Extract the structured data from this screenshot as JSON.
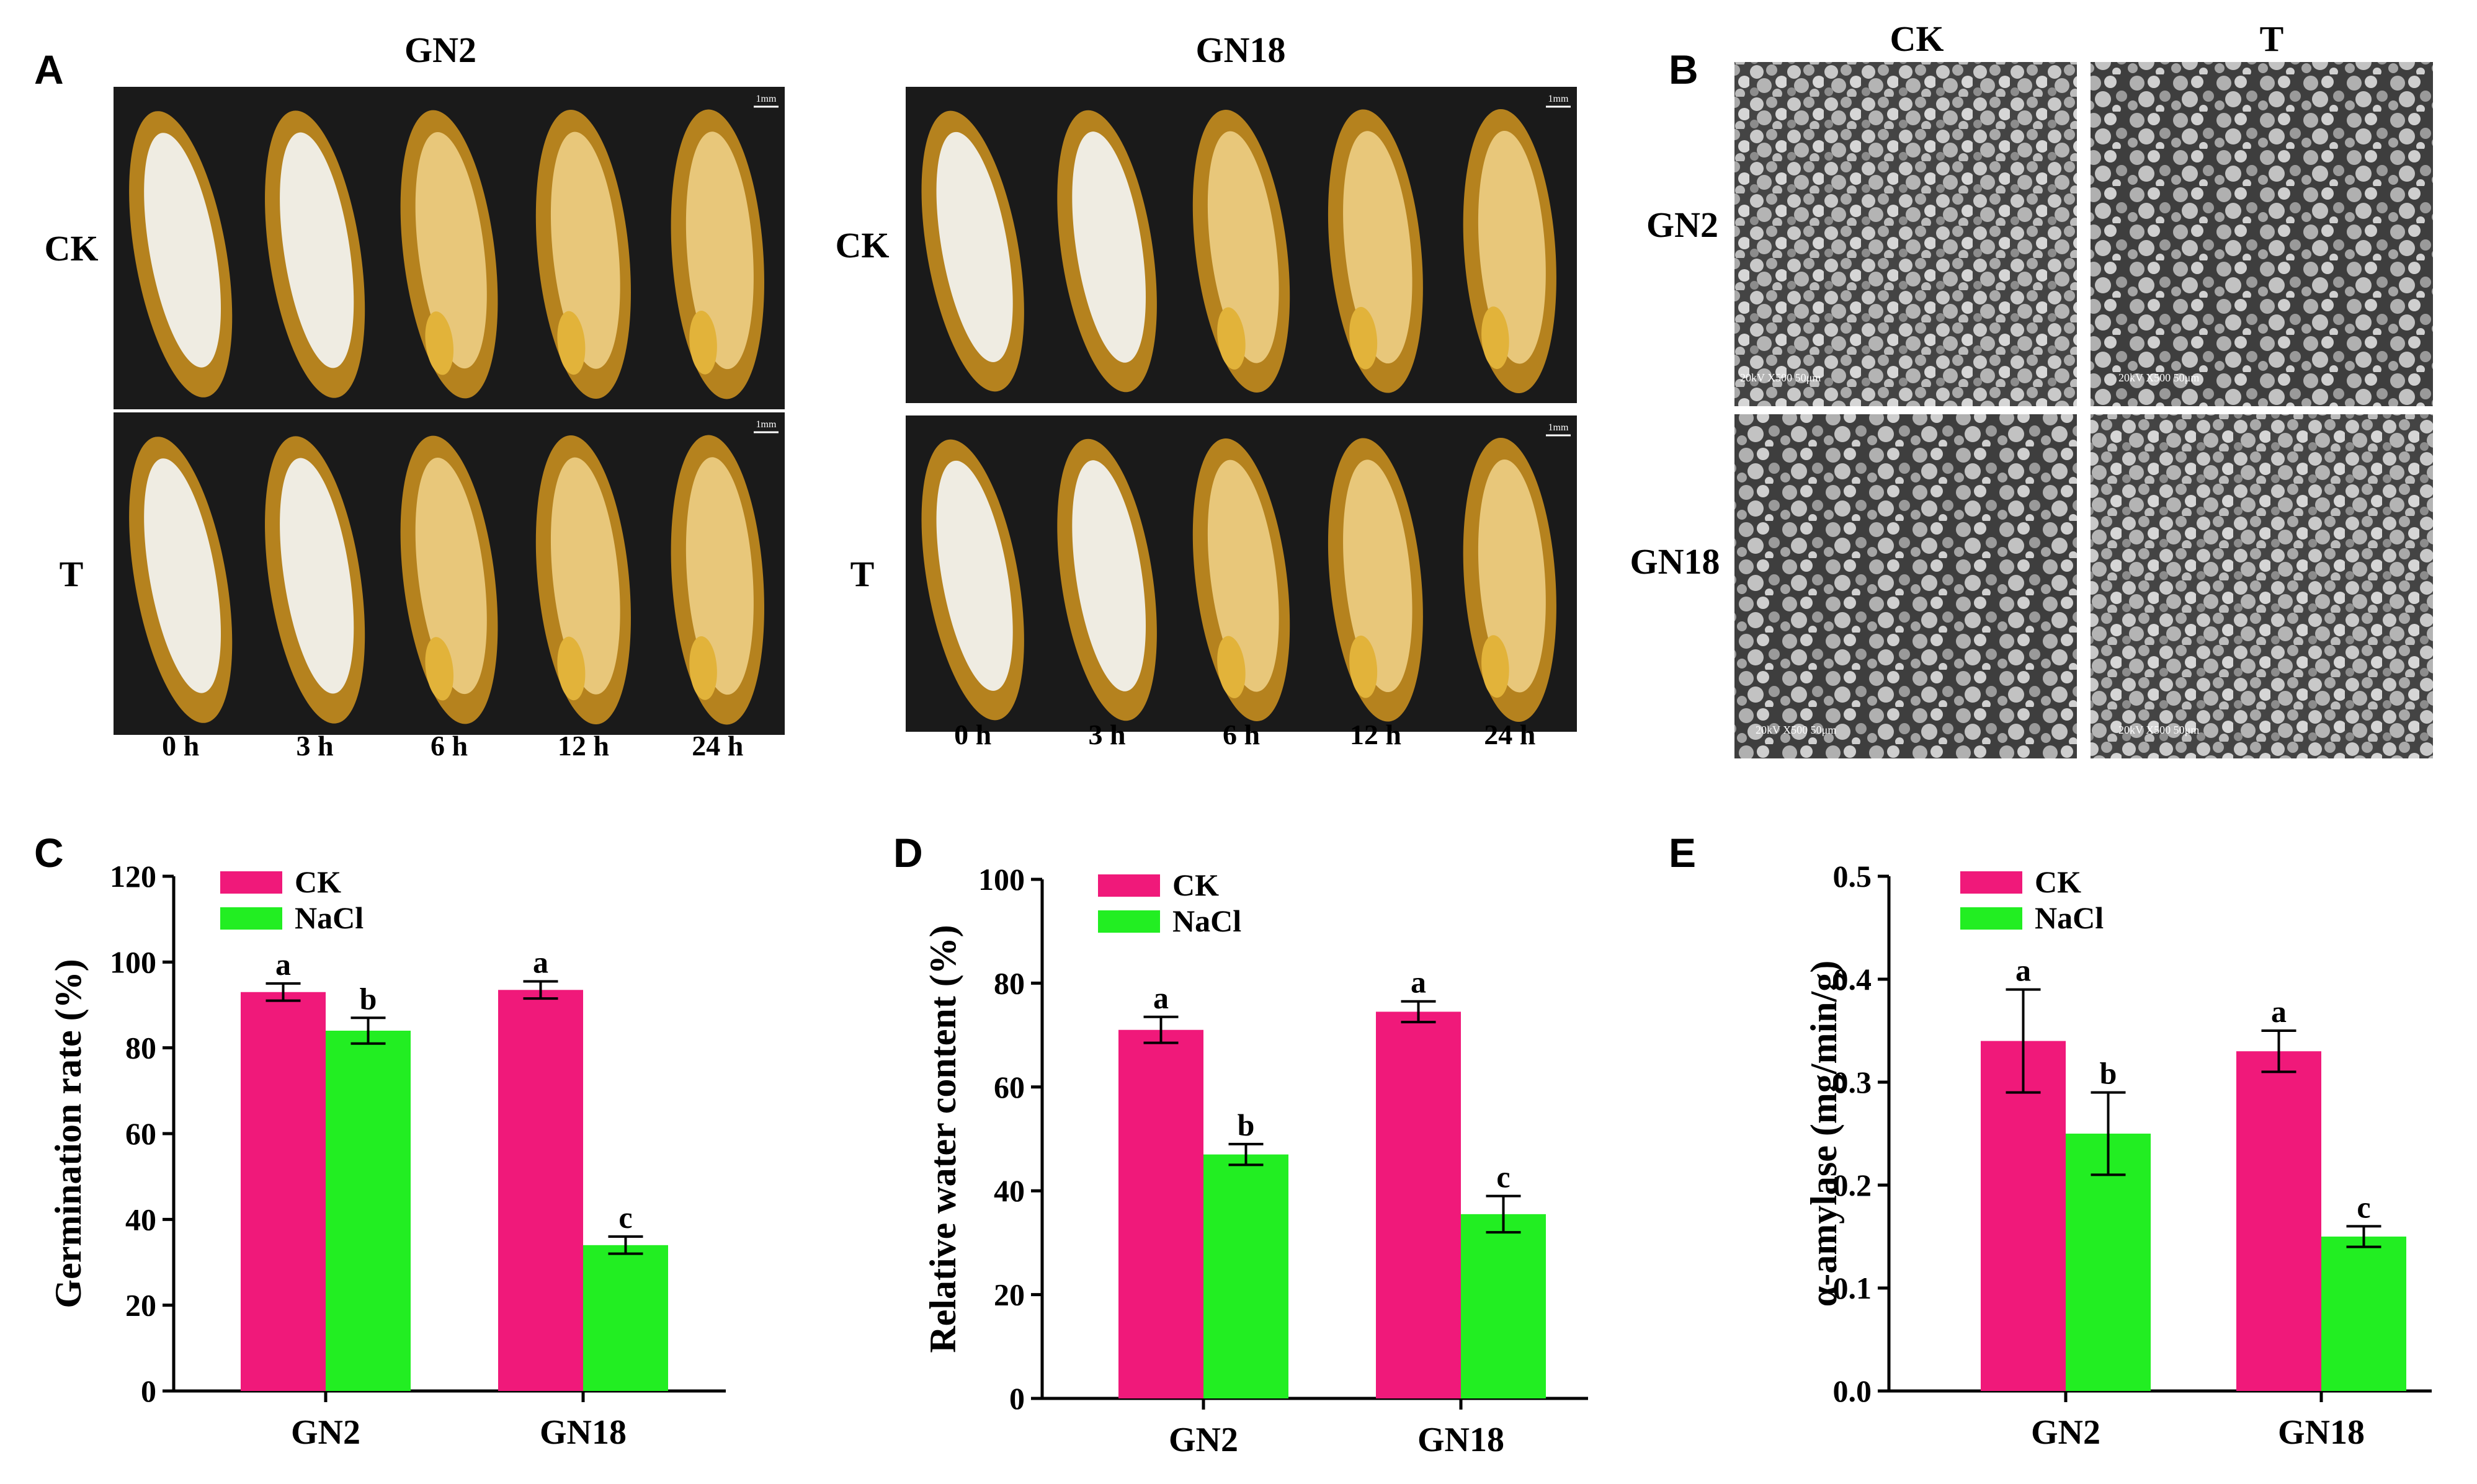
{
  "panels": {
    "A": {
      "letter": "A",
      "groups": [
        {
          "title": "GN2",
          "rows": [
            "CK",
            "T"
          ],
          "times": [
            "0 h",
            "3 h",
            "6 h",
            "12 h",
            "24 h"
          ],
          "scalebar": "1mm"
        },
        {
          "title": "GN18",
          "rows": [
            "CK",
            "T"
          ],
          "times": [
            "0 h",
            "3 h",
            "6 h",
            "12 h",
            "24 h"
          ],
          "scalebar": "1mm"
        }
      ]
    },
    "B": {
      "letter": "B",
      "columns": [
        "CK",
        "T"
      ],
      "rows": [
        "GN2",
        "GN18"
      ],
      "sem_label": "20kV   X500   50μm"
    },
    "C": {
      "letter": "C"
    },
    "D": {
      "letter": "D"
    },
    "E": {
      "letter": "E"
    }
  },
  "colors": {
    "CK": "#f0197a",
    "NaCl": "#22ee22",
    "seed_bg": "#1a1a1a",
    "husk": "#b5821e",
    "endosperm_white": "#efece2",
    "endosperm_yellow": "#e8c77a",
    "sem_bg": "#4a4a4a"
  },
  "chart_data": [
    {
      "id": "C",
      "type": "bar",
      "categories": [
        "GN2",
        "GN18"
      ],
      "series": [
        {
          "name": "CK",
          "values": [
            93,
            93.5
          ],
          "errors": [
            2,
            2
          ],
          "letters": [
            "a",
            "a"
          ]
        },
        {
          "name": "NaCl",
          "values": [
            84,
            34
          ],
          "errors": [
            3,
            2
          ],
          "letters": [
            "b",
            "c"
          ]
        }
      ],
      "ylabel": "Germination rate (%)",
      "xlabel": "",
      "ylim": [
        0,
        120
      ],
      "yticks": [
        0,
        20,
        40,
        60,
        80,
        100,
        120
      ],
      "legend": "top-left"
    },
    {
      "id": "D",
      "type": "bar",
      "categories": [
        "GN2",
        "GN18"
      ],
      "series": [
        {
          "name": "CK",
          "values": [
            71,
            74.5
          ],
          "errors": [
            2.5,
            2
          ],
          "letters": [
            "a",
            "a"
          ]
        },
        {
          "name": "NaCl",
          "values": [
            47,
            35.5
          ],
          "errors": [
            2,
            3.5
          ],
          "letters": [
            "b",
            "c"
          ]
        }
      ],
      "ylabel": "Relative water content (%)",
      "xlabel": "",
      "ylim": [
        0,
        100
      ],
      "yticks": [
        0,
        20,
        40,
        60,
        80,
        100
      ],
      "legend": "top-left"
    },
    {
      "id": "E",
      "type": "bar",
      "categories": [
        "GN2",
        "GN18"
      ],
      "series": [
        {
          "name": "CK",
          "values": [
            0.34,
            0.33
          ],
          "errors": [
            0.05,
            0.02
          ],
          "letters": [
            "a",
            "a"
          ]
        },
        {
          "name": "NaCl",
          "values": [
            0.25,
            0.15
          ],
          "errors": [
            0.04,
            0.01
          ],
          "letters": [
            "b",
            "c"
          ]
        }
      ],
      "ylabel": "α-amylase (mg/min/g)",
      "xlabel": "",
      "ylim": [
        0,
        0.5
      ],
      "yticks": [
        "0.0",
        "0.1",
        "0.2",
        "0.3",
        "0.4",
        "0.5"
      ],
      "legend": "top-left"
    }
  ]
}
